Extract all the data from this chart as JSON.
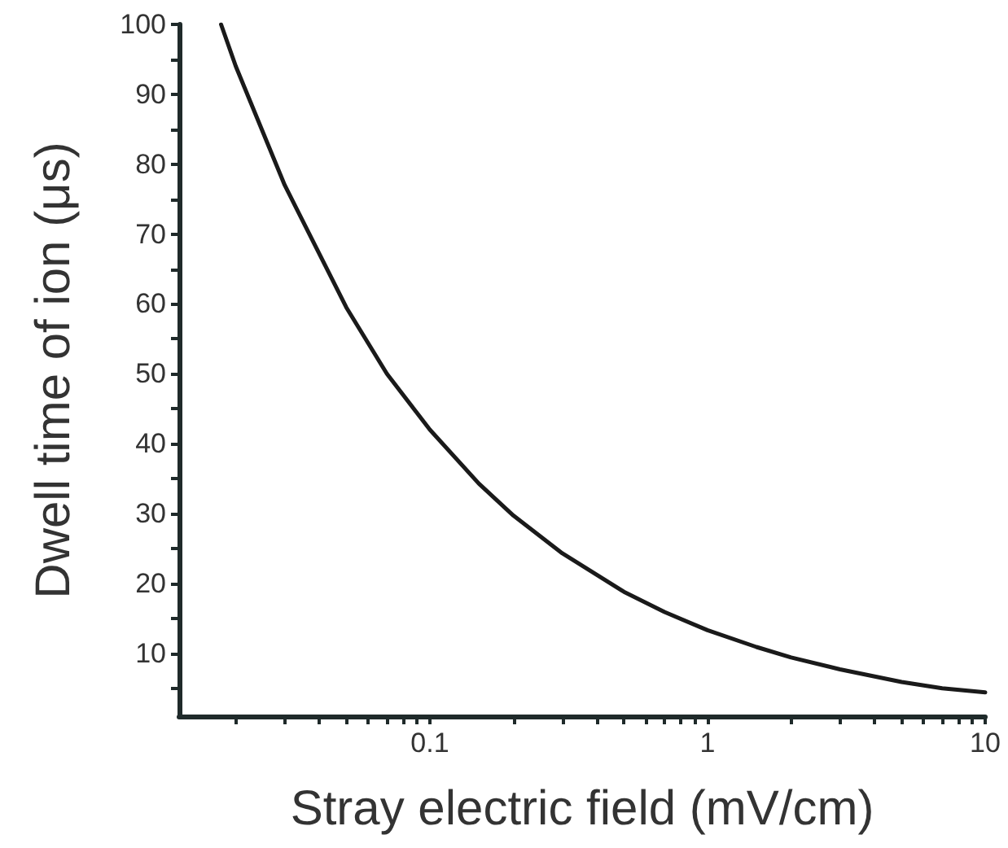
{
  "chart_data": {
    "type": "line",
    "xlabel": "Stray electric field (mV/cm)",
    "ylabel": "Dwell time of ion (μs)",
    "log": "x",
    "grid": false,
    "marker": "none",
    "line_style": "solid",
    "xlim": [
      0.0125,
      10
    ],
    "ylim": [
      1,
      100
    ],
    "xticks": [
      {
        "value": 0.02,
        "label": null
      },
      {
        "value": 0.03,
        "label": null
      },
      {
        "value": 0.04,
        "label": null
      },
      {
        "value": 0.05,
        "label": null
      },
      {
        "value": 0.06,
        "label": null
      },
      {
        "value": 0.07,
        "label": null
      },
      {
        "value": 0.08,
        "label": null
      },
      {
        "value": 0.09,
        "label": null
      },
      0.1,
      {
        "value": 0.2,
        "label": null
      },
      {
        "value": 0.3,
        "label": null
      },
      {
        "value": 0.4,
        "label": null
      },
      {
        "value": 0.5,
        "label": null
      },
      {
        "value": 0.6,
        "label": null
      },
      {
        "value": 0.7,
        "label": null
      },
      {
        "value": 0.8,
        "label": null
      },
      {
        "value": 0.9,
        "label": null
      },
      1,
      {
        "value": 2,
        "label": null
      },
      {
        "value": 3,
        "label": null
      },
      {
        "value": 4,
        "label": null
      },
      {
        "value": 5,
        "label": null
      },
      {
        "value": 6,
        "label": null
      },
      {
        "value": 7,
        "label": null
      },
      {
        "value": 8,
        "label": null
      },
      {
        "value": 9,
        "label": null
      },
      10
    ],
    "yticks": [
      {
        "value": 5,
        "label": null
      },
      10,
      {
        "value": 15,
        "label": null
      },
      20,
      {
        "value": 25,
        "label": null
      },
      30,
      {
        "value": 35,
        "label": null
      },
      40,
      {
        "value": 45,
        "label": null
      },
      50,
      {
        "value": 55,
        "label": null
      },
      60,
      {
        "value": 65,
        "label": null
      },
      70,
      {
        "value": 75,
        "label": null
      },
      80,
      {
        "value": 85,
        "label": null
      },
      90,
      {
        "value": 95,
        "label": null
      },
      100
    ],
    "series": [
      {
        "color": "#1a1a1a",
        "x": [
          0.0177,
          0.02,
          0.03,
          0.05,
          0.07,
          0.1,
          0.15,
          0.2,
          0.3,
          0.5,
          0.7,
          1,
          1.5,
          2,
          3,
          5,
          7,
          10
        ],
        "values": [
          100,
          94,
          77,
          59.5,
          50,
          42,
          34.3,
          29.7,
          24.3,
          18.8,
          15.9,
          13.3,
          10.9,
          9.4,
          7.7,
          5.9,
          5.0,
          4.4
        ]
      }
    ]
  }
}
